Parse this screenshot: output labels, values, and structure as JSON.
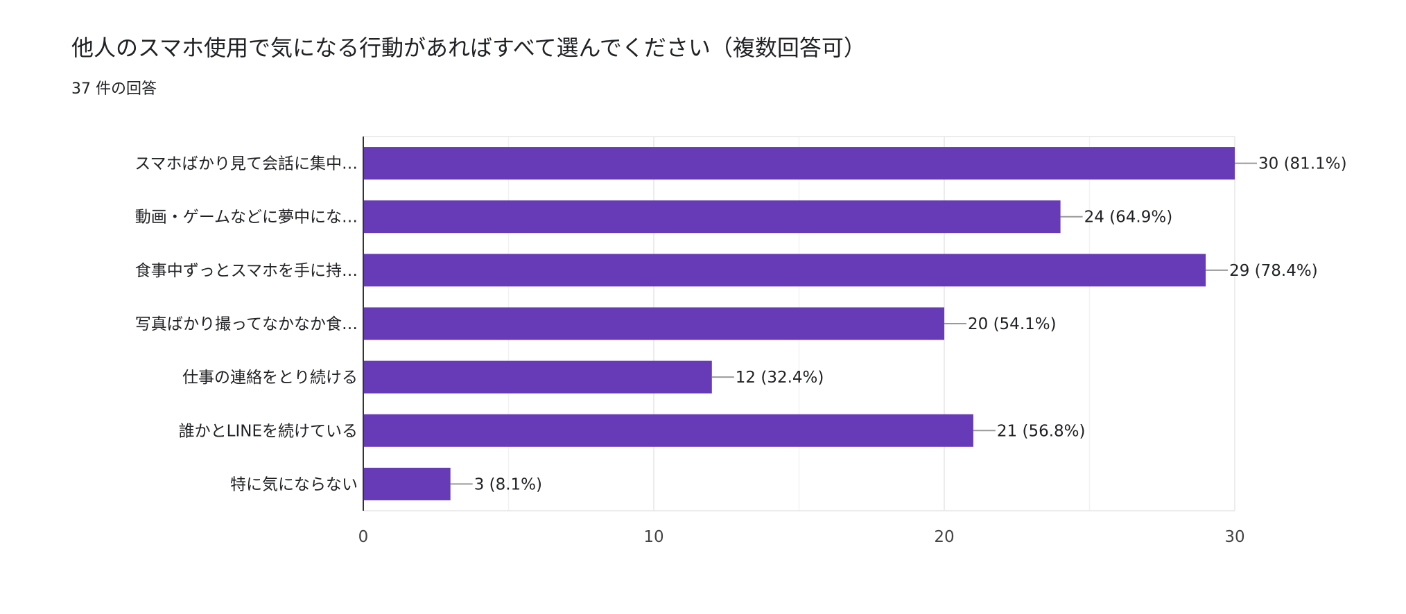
{
  "chart_data": {
    "type": "bar",
    "orientation": "horizontal",
    "title": "他人のスマホ使用で気になる行動があればすべて選んでください（複数回答可）",
    "subtitle": "37 件の回答",
    "categories": [
      "スマホばかり見て会話に集中…",
      "動画・ゲームなどに夢中にな…",
      "食事中ずっとスマホを手に持…",
      "写真ばかり撮ってなかなか食…",
      "仕事の連絡をとり続ける",
      "誰かとLINEを続けている",
      "特に気にならない"
    ],
    "values": [
      30,
      24,
      29,
      20,
      12,
      21,
      3
    ],
    "data_labels": [
      "30 (81.1%)",
      "24 (64.9%)",
      "29 (78.4%)",
      "20 (54.1%)",
      "12 (32.4%)",
      "21 (56.8%)",
      "3 (8.1%)"
    ],
    "xlim": [
      0,
      30
    ],
    "xticks": [
      "0",
      "10",
      "20",
      "30"
    ],
    "grid": true,
    "bar_color": "#673ab7"
  }
}
